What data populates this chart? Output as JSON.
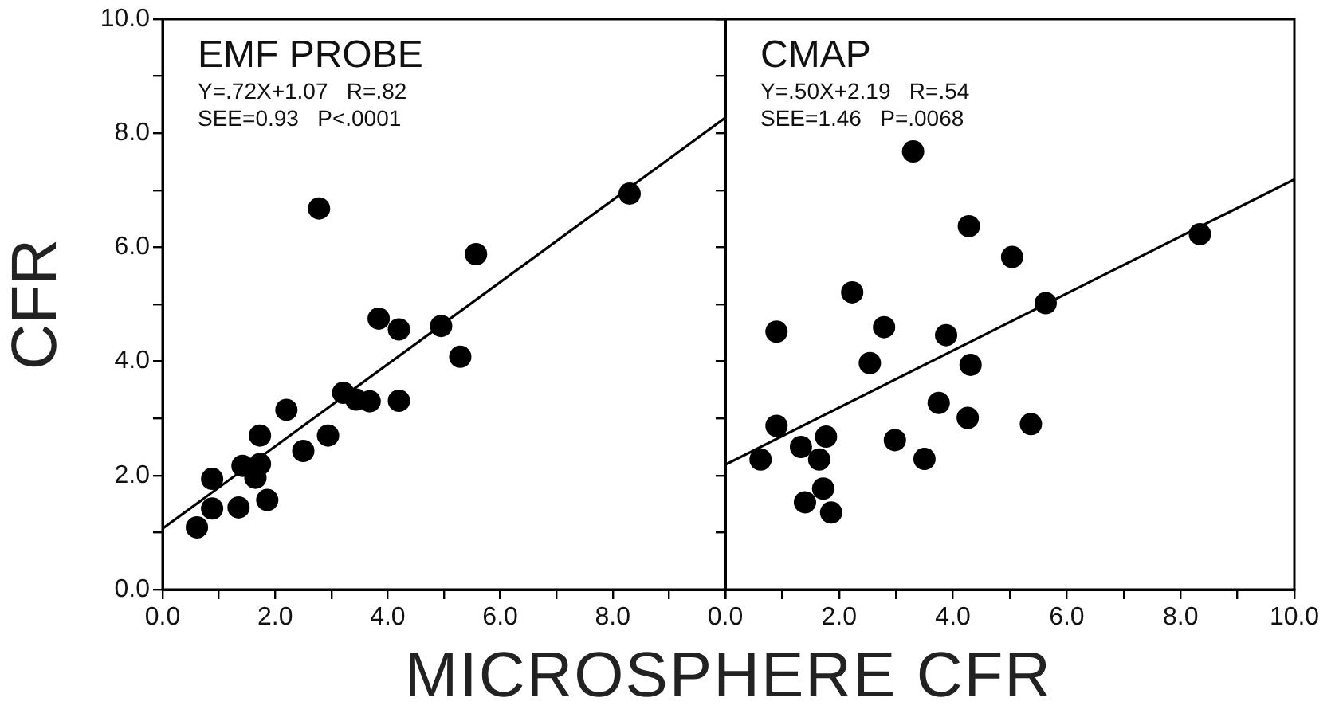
{
  "chart_data": [
    {
      "type": "scatter",
      "title": "EMF PROBE",
      "ylabel": "CFR",
      "xlabel": "MICROSPHERE CFR",
      "annotations": [
        "Y=.72X+1.07   R=.82",
        "SEE=0.93   P<.0001"
      ],
      "grid": false,
      "legend": false,
      "xlim": [
        0,
        10
      ],
      "xticks": [
        {
          "value": 0,
          "label": "0.0"
        },
        {
          "value": 1,
          "label": null
        },
        {
          "value": 2,
          "label": "2.0"
        },
        {
          "value": 3,
          "label": null
        },
        {
          "value": 4,
          "label": "4.0"
        },
        {
          "value": 5,
          "label": null
        },
        {
          "value": 6,
          "label": "6.0"
        },
        {
          "value": 7,
          "label": null
        },
        {
          "value": 8,
          "label": "8.0"
        },
        {
          "value": 9,
          "label": null
        },
        {
          "value": 10,
          "label": null
        }
      ],
      "ylim": [
        0,
        10
      ],
      "yticks": [
        {
          "value": 0,
          "label": "0.0"
        },
        {
          "value": 1,
          "label": null
        },
        {
          "value": 2,
          "label": "2.0"
        },
        {
          "value": 3,
          "label": null
        },
        {
          "value": 4,
          "label": "4.0"
        },
        {
          "value": 5,
          "label": null
        },
        {
          "value": 6,
          "label": "6.0"
        },
        {
          "value": 7,
          "label": null
        },
        {
          "value": 8,
          "label": "8.0"
        },
        {
          "value": 9,
          "label": null
        },
        {
          "value": 10,
          "label": "10.0"
        }
      ],
      "series": [
        {
          "marker": "circle",
          "color": "#000000",
          "x": [
            0.61,
            0.88,
            0.88,
            1.35,
            1.42,
            1.73,
            1.65,
            1.73,
            1.86,
            2.2,
            2.5,
            2.78,
            2.94,
            3.21,
            3.44,
            3.68,
            3.84,
            4.2,
            4.2,
            4.95,
            5.29,
            5.57,
            8.3
          ],
          "values": [
            1.09,
            1.42,
            1.94,
            1.44,
            2.17,
            2.2,
            1.96,
            2.7,
            1.57,
            3.15,
            2.43,
            6.68,
            2.7,
            3.45,
            3.33,
            3.3,
            4.75,
            4.56,
            3.31,
            4.62,
            4.08,
            5.88,
            6.94
          ]
        },
        {
          "type": "line",
          "marker": "none",
          "color": "#000000",
          "x": [
            0,
            10
          ],
          "values": [
            1.07,
            8.27
          ]
        }
      ]
    },
    {
      "type": "scatter",
      "title": "CMAP",
      "annotations": [
        "Y=.50X+2.19   R=.54",
        "SEE=1.46   P=.0068"
      ],
      "grid": false,
      "legend": false,
      "tick_labels": "x",
      "xlim": [
        0,
        10
      ],
      "xticks": [
        {
          "value": 0,
          "label": "0.0"
        },
        {
          "value": 1,
          "label": null
        },
        {
          "value": 2,
          "label": "2.0"
        },
        {
          "value": 3,
          "label": null
        },
        {
          "value": 4,
          "label": "4.0"
        },
        {
          "value": 5,
          "label": null
        },
        {
          "value": 6,
          "label": "6.0"
        },
        {
          "value": 7,
          "label": null
        },
        {
          "value": 8,
          "label": "8.0"
        },
        {
          "value": 9,
          "label": null
        },
        {
          "value": 10,
          "label": "10.0"
        }
      ],
      "ylim": [
        0,
        10
      ],
      "yticks": [
        {
          "value": 0,
          "label": null
        },
        {
          "value": 1,
          "label": null
        },
        {
          "value": 2,
          "label": null
        },
        {
          "value": 3,
          "label": null
        },
        {
          "value": 4,
          "label": null
        },
        {
          "value": 5,
          "label": null
        },
        {
          "value": 6,
          "label": null
        },
        {
          "value": 7,
          "label": null
        },
        {
          "value": 8,
          "label": null
        },
        {
          "value": 9,
          "label": null
        },
        {
          "value": 10,
          "label": null
        }
      ],
      "series": [
        {
          "marker": "circle",
          "color": "#000000",
          "x": [
            0.62,
            0.9,
            0.9,
            1.33,
            1.77,
            1.65,
            1.4,
            1.72,
            1.86,
            2.23,
            2.54,
            2.79,
            2.98,
            3.3,
            3.5,
            3.75,
            3.88,
            4.28,
            4.31,
            4.26,
            5.04,
            5.37,
            5.63,
            8.34
          ],
          "values": [
            2.28,
            2.87,
            4.52,
            2.5,
            2.68,
            2.28,
            1.53,
            1.77,
            1.35,
            5.21,
            3.97,
            4.6,
            2.62,
            7.68,
            2.29,
            3.27,
            4.46,
            6.37,
            3.94,
            3.01,
            5.83,
            2.9,
            5.02,
            6.23
          ]
        },
        {
          "type": "line",
          "marker": "none",
          "color": "#000000",
          "x": [
            0,
            10
          ],
          "values": [
            2.19,
            7.19
          ]
        }
      ]
    }
  ]
}
